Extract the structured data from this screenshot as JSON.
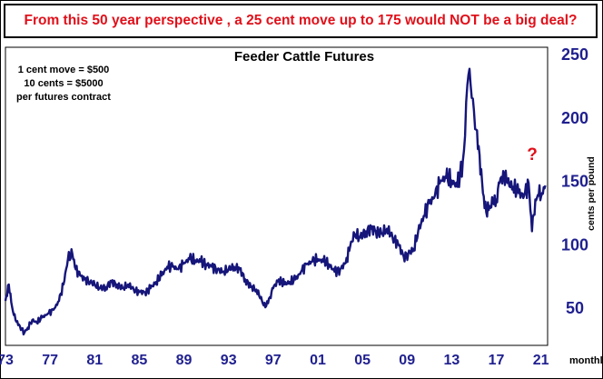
{
  "headline": "From this 50 year perspective , a 25 cent move up to 175 would NOT be a big deal?",
  "colors": {
    "headline": "#e0101a",
    "line": "#15157a",
    "axis_text": "#1f1f8f",
    "question": "#e0101a"
  },
  "chart_data": {
    "type": "line",
    "title": "Feeder Cattle Futures",
    "ylabel": "cents per pound",
    "xlabel": "",
    "frequency_label": "monthly",
    "ylim": [
      20,
      255
    ],
    "xlim": [
      1973,
      2021.6
    ],
    "grid": false,
    "x_ticks": [
      "73",
      "77",
      "81",
      "85",
      "89",
      "93",
      "97",
      "01",
      "05",
      "09",
      "13",
      "17",
      "21"
    ],
    "y_ticks": [
      50,
      100,
      150,
      200,
      250
    ],
    "annotations": [
      "1 cent move = $500",
      "10 cents = $5000",
      "per futures contract"
    ],
    "marker": "?",
    "series": [
      {
        "x": [
          1973,
          1973.3,
          1973.6,
          1973.9,
          1974.3,
          1974.7,
          1975.0,
          1975.4,
          1975.8,
          1976.3,
          1976.8,
          1977.3,
          1977.8,
          1978.2,
          1978.6,
          1979.0,
          1979.3,
          1979.7,
          1980.1,
          1980.6,
          1981.0,
          1981.5,
          1982.0,
          1982.5,
          1983.0,
          1983.5,
          1984.0,
          1984.5,
          1985.0,
          1985.5,
          1986.0,
          1986.5,
          1987.0,
          1987.5,
          1988.0,
          1988.5,
          1989.0,
          1989.5,
          1990.0,
          1990.5,
          1991.0,
          1991.5,
          1992.0,
          1992.5,
          1993.0,
          1993.5,
          1994.0,
          1994.5,
          1995.0,
          1995.5,
          1996.0,
          1996.3,
          1996.7,
          1997.0,
          1997.5,
          1998.0,
          1998.5,
          1999.0,
          1999.5,
          2000.0,
          2000.5,
          2001.0,
          2001.5,
          2002.0,
          2002.5,
          2003.0,
          2003.5,
          2003.9,
          2004.3,
          2004.8,
          2005.3,
          2005.8,
          2006.2,
          2006.7,
          2007.2,
          2007.7,
          2008.2,
          2008.7,
          2009.1,
          2009.6,
          2010.0,
          2010.5,
          2011.0,
          2011.5,
          2012.0,
          2012.5,
          2013.0,
          2013.5,
          2014.0,
          2014.2,
          2014.4,
          2014.6,
          2014.8,
          2015.0,
          2015.2,
          2015.5,
          2015.8,
          2016.1,
          2016.4,
          2016.7,
          2017.0,
          2017.3,
          2017.7,
          2018.0,
          2018.5,
          2019.0,
          2019.5,
          2019.9,
          2020.2,
          2020.5,
          2020.8,
          2021.1,
          2021.4
        ],
        "y": [
          55,
          68,
          50,
          40,
          35,
          30,
          34,
          40,
          38,
          42,
          45,
          48,
          55,
          68,
          88,
          92,
          80,
          75,
          72,
          70,
          68,
          65,
          66,
          70,
          68,
          65,
          68,
          64,
          62,
          62,
          65,
          70,
          75,
          82,
          82,
          80,
          85,
          88,
          87,
          86,
          84,
          82,
          80,
          78,
          80,
          82,
          80,
          72,
          66,
          64,
          55,
          50,
          58,
          65,
          72,
          68,
          70,
          72,
          78,
          84,
          86,
          88,
          86,
          84,
          78,
          80,
          85,
          98,
          108,
          105,
          110,
          112,
          110,
          108,
          112,
          105,
          100,
          90,
          92,
          96,
          110,
          122,
          132,
          138,
          150,
          152,
          150,
          145,
          165,
          185,
          225,
          238,
          215,
          205,
          190,
          170,
          140,
          125,
          130,
          132,
          135,
          148,
          155,
          148,
          145,
          140,
          138,
          148,
          110,
          135,
          138,
          140,
          146
        ]
      }
    ]
  }
}
